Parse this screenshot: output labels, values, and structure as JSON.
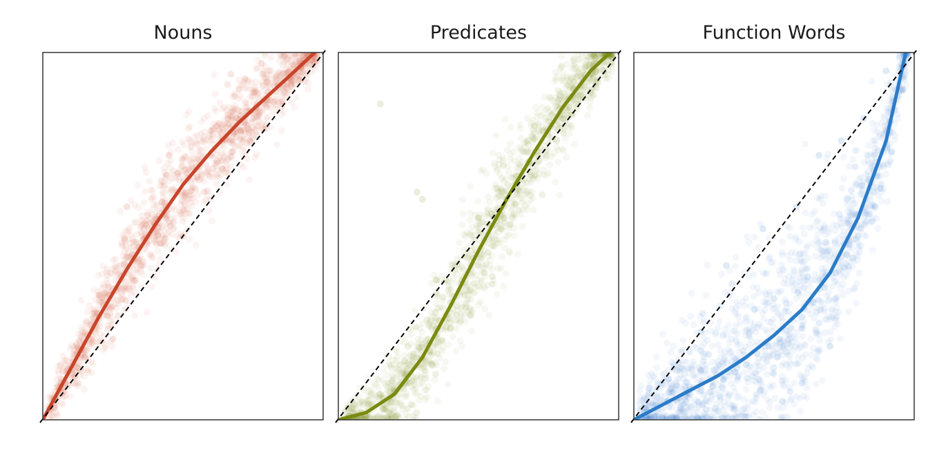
{
  "figure": {
    "panels": [
      {
        "title": "Nouns"
      },
      {
        "title": "Predicates"
      },
      {
        "title": "Function Words"
      }
    ]
  },
  "chart_data": [
    {
      "type": "scatter",
      "title": "Nouns",
      "xlabel": "",
      "ylabel": "",
      "xlim": [
        0,
        1
      ],
      "ylim": [
        0,
        1
      ],
      "grid": false,
      "point_color": "#c8452a",
      "curve_color": "#c8452a",
      "reference_line": {
        "type": "identity",
        "style": "dashed",
        "color": "#000000"
      },
      "smooth_curve": {
        "x": [
          0.0,
          0.1,
          0.2,
          0.3,
          0.4,
          0.5,
          0.6,
          0.7,
          0.8,
          0.9,
          0.97
        ],
        "y": [
          0.0,
          0.14,
          0.28,
          0.41,
          0.53,
          0.64,
          0.73,
          0.81,
          0.88,
          0.95,
          1.0
        ]
      },
      "sample_points": {
        "x": [
          0.04,
          0.08,
          0.12,
          0.16,
          0.2,
          0.24,
          0.28,
          0.32,
          0.36,
          0.4,
          0.44,
          0.48,
          0.52,
          0.56,
          0.6,
          0.64,
          0.68,
          0.72,
          0.76,
          0.8,
          0.84,
          0.88,
          0.92,
          0.96,
          0.3,
          0.35,
          0.45,
          0.2,
          0.12,
          0.5,
          0.62,
          0.7,
          0.78,
          0.55,
          0.42,
          0.25,
          0.15,
          0.66,
          0.86,
          0.74
        ],
        "y": [
          0.06,
          0.1,
          0.18,
          0.23,
          0.28,
          0.34,
          0.39,
          0.45,
          0.49,
          0.53,
          0.58,
          0.62,
          0.66,
          0.69,
          0.72,
          0.76,
          0.78,
          0.81,
          0.85,
          0.87,
          0.91,
          0.93,
          0.96,
          0.98,
          0.58,
          0.42,
          0.72,
          0.34,
          0.13,
          0.5,
          0.8,
          0.9,
          0.97,
          0.66,
          0.48,
          0.22,
          0.17,
          0.82,
          0.99,
          0.76
        ]
      }
    },
    {
      "type": "scatter",
      "title": "Predicates",
      "xlabel": "",
      "ylabel": "",
      "xlim": [
        0,
        1
      ],
      "ylim": [
        0,
        1
      ],
      "grid": false,
      "point_color": "#7b8a10",
      "curve_color": "#7b8a10",
      "reference_line": {
        "type": "identity",
        "style": "dashed",
        "color": "#000000"
      },
      "smooth_curve": {
        "x": [
          0.0,
          0.1,
          0.2,
          0.3,
          0.4,
          0.5,
          0.6,
          0.7,
          0.8,
          0.9,
          0.97
        ],
        "y": [
          0.0,
          0.02,
          0.07,
          0.17,
          0.31,
          0.46,
          0.6,
          0.73,
          0.85,
          0.95,
          1.0
        ]
      },
      "sample_points": {
        "x": [
          0.04,
          0.08,
          0.12,
          0.16,
          0.2,
          0.24,
          0.28,
          0.32,
          0.36,
          0.4,
          0.44,
          0.48,
          0.52,
          0.56,
          0.6,
          0.64,
          0.68,
          0.72,
          0.76,
          0.8,
          0.84,
          0.88,
          0.92,
          0.96,
          0.28,
          0.3,
          0.35,
          0.4,
          0.5,
          0.58,
          0.7,
          0.76,
          0.84,
          0.88,
          0.22,
          0.16,
          0.45,
          0.62,
          0.52,
          0.15
        ],
        "y": [
          0.01,
          0.02,
          0.04,
          0.06,
          0.08,
          0.12,
          0.17,
          0.22,
          0.27,
          0.32,
          0.38,
          0.44,
          0.49,
          0.55,
          0.6,
          0.65,
          0.7,
          0.74,
          0.8,
          0.84,
          0.9,
          0.94,
          0.97,
          0.99,
          0.62,
          0.6,
          0.38,
          0.25,
          0.55,
          0.52,
          0.8,
          0.83,
          0.92,
          0.96,
          0.15,
          0.03,
          0.34,
          0.66,
          0.4,
          0.86
        ]
      }
    },
    {
      "type": "scatter",
      "title": "Function Words",
      "xlabel": "",
      "ylabel": "",
      "xlim": [
        0,
        1
      ],
      "ylim": [
        0,
        1
      ],
      "grid": false,
      "point_color": "#2b7cc8",
      "curve_color": "#2b7cc8",
      "reference_line": {
        "type": "identity",
        "style": "dashed",
        "color": "#000000"
      },
      "smooth_curve": {
        "x": [
          0.0,
          0.1,
          0.2,
          0.3,
          0.4,
          0.5,
          0.6,
          0.7,
          0.8,
          0.9,
          0.97
        ],
        "y": [
          0.0,
          0.04,
          0.08,
          0.12,
          0.17,
          0.23,
          0.3,
          0.4,
          0.55,
          0.76,
          1.0
        ]
      },
      "sample_points": {
        "x": [
          0.04,
          0.08,
          0.12,
          0.16,
          0.2,
          0.24,
          0.28,
          0.32,
          0.36,
          0.4,
          0.44,
          0.48,
          0.52,
          0.56,
          0.6,
          0.64,
          0.68,
          0.72,
          0.76,
          0.8,
          0.84,
          0.88,
          0.92,
          0.96,
          0.24,
          0.33,
          0.46,
          0.58,
          0.66,
          0.74,
          0.82,
          0.9,
          0.53,
          0.43,
          0.5,
          0.62,
          0.86,
          0.78,
          0.6,
          0.7
        ],
        "y": [
          0.02,
          0.04,
          0.05,
          0.06,
          0.07,
          0.08,
          0.09,
          0.11,
          0.13,
          0.15,
          0.18,
          0.2,
          0.22,
          0.25,
          0.28,
          0.32,
          0.36,
          0.4,
          0.45,
          0.5,
          0.56,
          0.63,
          0.73,
          0.9,
          0.24,
          0.42,
          0.52,
          0.58,
          0.72,
          0.76,
          0.82,
          0.95,
          0.05,
          0.3,
          0.33,
          0.39,
          0.58,
          0.44,
          0.1,
          0.2
        ]
      }
    }
  ]
}
